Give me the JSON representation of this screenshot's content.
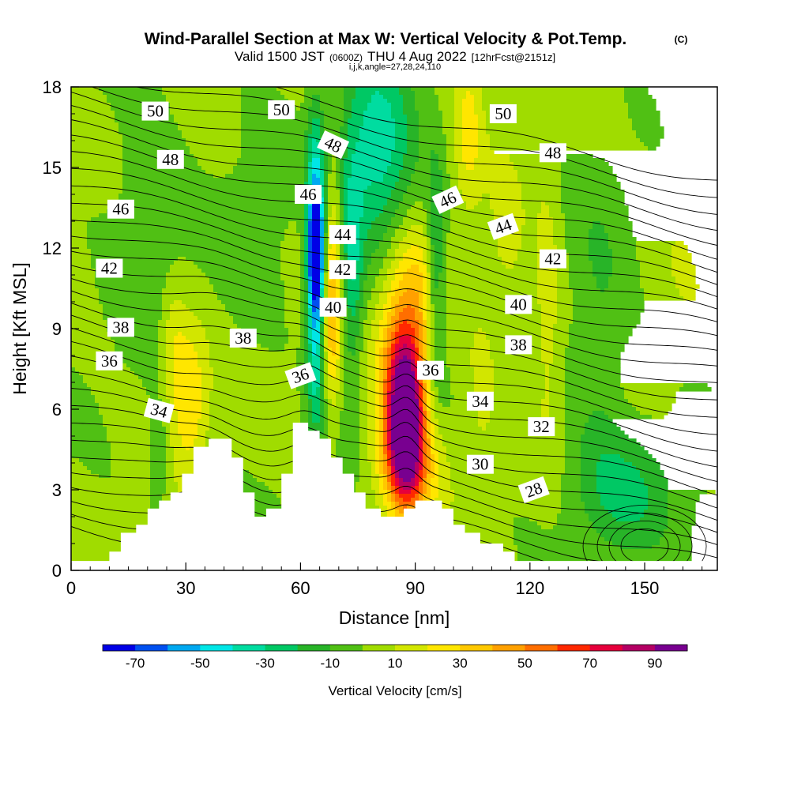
{
  "title": {
    "main": "Wind-Parallel Section at Max W: Vertical Velocity & Pot.Temp.",
    "main_suffix": "(C)",
    "valid_prefix": "Valid 1500 JST",
    "valid_utc": "(0600Z)",
    "valid_date": "THU 4 Aug 2022",
    "forecast": "[12hrFcst@2151z]",
    "section_params": "i,j,k,angle=27,28,24,110"
  },
  "chart_data": {
    "type": "heatmap",
    "xlabel": "Distance [nm]",
    "ylabel": "Height [Kft MSL]",
    "xlim": [
      0,
      169
    ],
    "ylim": [
      0,
      18
    ],
    "x_ticks": [
      0,
      30,
      60,
      90,
      120,
      150
    ],
    "y_ticks": [
      0,
      3,
      6,
      9,
      12,
      15,
      18
    ],
    "terrain_kft": [
      [
        0,
        0.35
      ],
      [
        10,
        0.35
      ],
      [
        10,
        0.7
      ],
      [
        13,
        0.7
      ],
      [
        13,
        1.4
      ],
      [
        17,
        1.4
      ],
      [
        17,
        1.7
      ],
      [
        20,
        1.7
      ],
      [
        20,
        2.3
      ],
      [
        23,
        2.3
      ],
      [
        23,
        2.6
      ],
      [
        26,
        2.6
      ],
      [
        26,
        2.9
      ],
      [
        29,
        2.9
      ],
      [
        29,
        3.6
      ],
      [
        32,
        3.6
      ],
      [
        32,
        4.6
      ],
      [
        36,
        4.6
      ],
      [
        36,
        4.9
      ],
      [
        42,
        4.9
      ],
      [
        42,
        4.2
      ],
      [
        45,
        4.2
      ],
      [
        45,
        2.9
      ],
      [
        48,
        2.9
      ],
      [
        48,
        2.0
      ],
      [
        51,
        2.0
      ],
      [
        51,
        2.3
      ],
      [
        55,
        2.3
      ],
      [
        55,
        3.6
      ],
      [
        58,
        3.6
      ],
      [
        58,
        5.5
      ],
      [
        62,
        5.5
      ],
      [
        62,
        5.2
      ],
      [
        65,
        5.2
      ],
      [
        65,
        4.9
      ],
      [
        68,
        4.9
      ],
      [
        68,
        4.2
      ],
      [
        71,
        4.2
      ],
      [
        71,
        3.6
      ],
      [
        74,
        3.6
      ],
      [
        74,
        2.9
      ],
      [
        77,
        2.9
      ],
      [
        77,
        2.3
      ],
      [
        81,
        2.3
      ],
      [
        81,
        2.0
      ],
      [
        87,
        2.0
      ],
      [
        87,
        2.3
      ],
      [
        90,
        2.3
      ],
      [
        90,
        2.6
      ],
      [
        97,
        2.6
      ],
      [
        97,
        2.3
      ],
      [
        100,
        2.3
      ],
      [
        100,
        1.7
      ],
      [
        103,
        1.7
      ],
      [
        103,
        1.4
      ],
      [
        107,
        1.4
      ],
      [
        107,
        1.0
      ],
      [
        113,
        1.0
      ],
      [
        113,
        0.7
      ],
      [
        116,
        0.7
      ],
      [
        116,
        0.35
      ],
      [
        169,
        0.35
      ]
    ],
    "w_features": [
      {
        "x": 87.5,
        "y": 5.5,
        "w": 90,
        "sx": 3.2,
        "sy": 2.0
      },
      {
        "x": 86.5,
        "y": 7.5,
        "w": 45,
        "sx": 4.8,
        "sy": 2.2
      },
      {
        "x": 88.0,
        "y": 3.8,
        "w": 35,
        "sx": 6.0,
        "sy": 1.4
      },
      {
        "x": 90.5,
        "y": 10.5,
        "w": 22,
        "sx": 5.5,
        "sy": 1.8
      },
      {
        "x": 68.5,
        "y": 11.5,
        "w": 28,
        "sx": 1.8,
        "sy": 2.6
      },
      {
        "x": 68.0,
        "y": 8.5,
        "w": 18,
        "sx": 1.6,
        "sy": 2.0
      },
      {
        "x": 64.0,
        "y": 11.8,
        "w": -72,
        "sx": 1.3,
        "sy": 1.3
      },
      {
        "x": 64.0,
        "y": 9.0,
        "w": -45,
        "sx": 1.7,
        "sy": 2.8
      },
      {
        "x": 64.0,
        "y": 14.0,
        "w": -38,
        "sx": 1.7,
        "sy": 2.5
      },
      {
        "x": 80.0,
        "y": 15.5,
        "w": -38,
        "sx": 6.5,
        "sy": 2.8
      },
      {
        "x": 95.5,
        "y": 11.0,
        "w": -33,
        "sx": 1.8,
        "sy": 2.8
      },
      {
        "x": 73.5,
        "y": 11.0,
        "w": -28,
        "sx": 2.0,
        "sy": 3.0
      },
      {
        "x": 31.0,
        "y": 6.5,
        "w": 28,
        "sx": 3.5,
        "sy": 1.9
      },
      {
        "x": 26.5,
        "y": 8.5,
        "w": 16,
        "sx": 2.6,
        "sy": 1.6
      },
      {
        "x": 104.0,
        "y": 16.5,
        "w": 20,
        "sx": 2.5,
        "sy": 2.2
      },
      {
        "x": 124.5,
        "y": 10.0,
        "w": 15,
        "sx": 2.3,
        "sy": 3.5
      },
      {
        "x": 114.0,
        "y": 12.0,
        "w": 12,
        "sx": 3.5,
        "sy": 2.5
      },
      {
        "x": 145.0,
        "y": 3.0,
        "w": -22,
        "sx": 10.0,
        "sy": 1.7
      },
      {
        "x": 20.0,
        "y": 13.0,
        "w": -12,
        "sx": 7.0,
        "sy": 3.0
      },
      {
        "x": 48.0,
        "y": 13.0,
        "w": -8,
        "sx": 6.0,
        "sy": 3.0
      },
      {
        "x": 138.0,
        "y": 9.0,
        "w": -12,
        "sx": 5.0,
        "sy": 4.0
      },
      {
        "x": 160.0,
        "y": 14.0,
        "w": 6,
        "sx": 5.0,
        "sy": 4.0
      },
      {
        "x": 23.0,
        "y": 4.5,
        "w": -14,
        "sx": 2.0,
        "sy": 1.5
      },
      {
        "x": 107.0,
        "y": 6.5,
        "w": 10,
        "sx": 3.0,
        "sy": 3.0
      }
    ],
    "theta_contours": {
      "start": 24,
      "end": 56,
      "step": 1,
      "labels": [
        {
          "text": "50",
          "x": 22,
          "y": 17.1,
          "rot": 0
        },
        {
          "text": "50",
          "x": 55,
          "y": 17.15,
          "rot": 0
        },
        {
          "text": "50",
          "x": 113,
          "y": 17.0,
          "rot": 0
        },
        {
          "text": "48",
          "x": 68.5,
          "y": 15.85,
          "rot": 25
        },
        {
          "text": "48",
          "x": 26,
          "y": 15.3,
          "rot": 0
        },
        {
          "text": "48",
          "x": 126,
          "y": 15.55,
          "rot": 0
        },
        {
          "text": "46",
          "x": 62,
          "y": 14.0,
          "rot": 0
        },
        {
          "text": "46",
          "x": 13,
          "y": 13.45,
          "rot": 0
        },
        {
          "text": "46",
          "x": 98.5,
          "y": 13.8,
          "rot": -25
        },
        {
          "text": "44",
          "x": 71,
          "y": 12.5,
          "rot": 0
        },
        {
          "text": "44",
          "x": 113,
          "y": 12.8,
          "rot": -20
        },
        {
          "text": "42",
          "x": 10,
          "y": 11.25,
          "rot": 0
        },
        {
          "text": "42",
          "x": 71,
          "y": 11.2,
          "rot": 0
        },
        {
          "text": "42",
          "x": 126,
          "y": 11.6,
          "rot": 0
        },
        {
          "text": "40",
          "x": 68.5,
          "y": 9.8,
          "rot": 0
        },
        {
          "text": "40",
          "x": 117,
          "y": 9.9,
          "rot": 0
        },
        {
          "text": "38",
          "x": 13,
          "y": 9.05,
          "rot": 0
        },
        {
          "text": "38",
          "x": 45,
          "y": 8.65,
          "rot": 0
        },
        {
          "text": "38",
          "x": 117,
          "y": 8.4,
          "rot": 0
        },
        {
          "text": "36",
          "x": 10,
          "y": 7.8,
          "rot": 0
        },
        {
          "text": "36",
          "x": 60,
          "y": 7.25,
          "rot": -20
        },
        {
          "text": "36",
          "x": 94,
          "y": 7.45,
          "rot": 0
        },
        {
          "text": "34",
          "x": 23,
          "y": 5.95,
          "rot": 15
        },
        {
          "text": "34",
          "x": 107,
          "y": 6.3,
          "rot": 0
        },
        {
          "text": "32",
          "x": 123,
          "y": 5.35,
          "rot": 0
        },
        {
          "text": "30",
          "x": 107,
          "y": 3.95,
          "rot": 0
        },
        {
          "text": "28",
          "x": 121,
          "y": 3.0,
          "rot": -20
        }
      ]
    },
    "colorbar": {
      "label": "Vertical Velocity [cm/s]",
      "min": -80,
      "max": 100,
      "step": 10,
      "tick_values": [
        -70,
        -50,
        -30,
        -10,
        10,
        30,
        50,
        70,
        90
      ],
      "tick_labels": [
        "-70",
        "-50",
        "-30",
        "-10",
        "10",
        "30",
        "50",
        "70",
        "90"
      ],
      "colors": [
        "#0000e6",
        "#0050f0",
        "#00a8f0",
        "#00e6e6",
        "#00dca0",
        "#00c864",
        "#28b428",
        "#50c014",
        "#a0dc00",
        "#d2e600",
        "#ffe600",
        "#ffc800",
        "#ffa000",
        "#ff6e00",
        "#ff2800",
        "#e6003c",
        "#b40064",
        "#780090"
      ]
    }
  }
}
